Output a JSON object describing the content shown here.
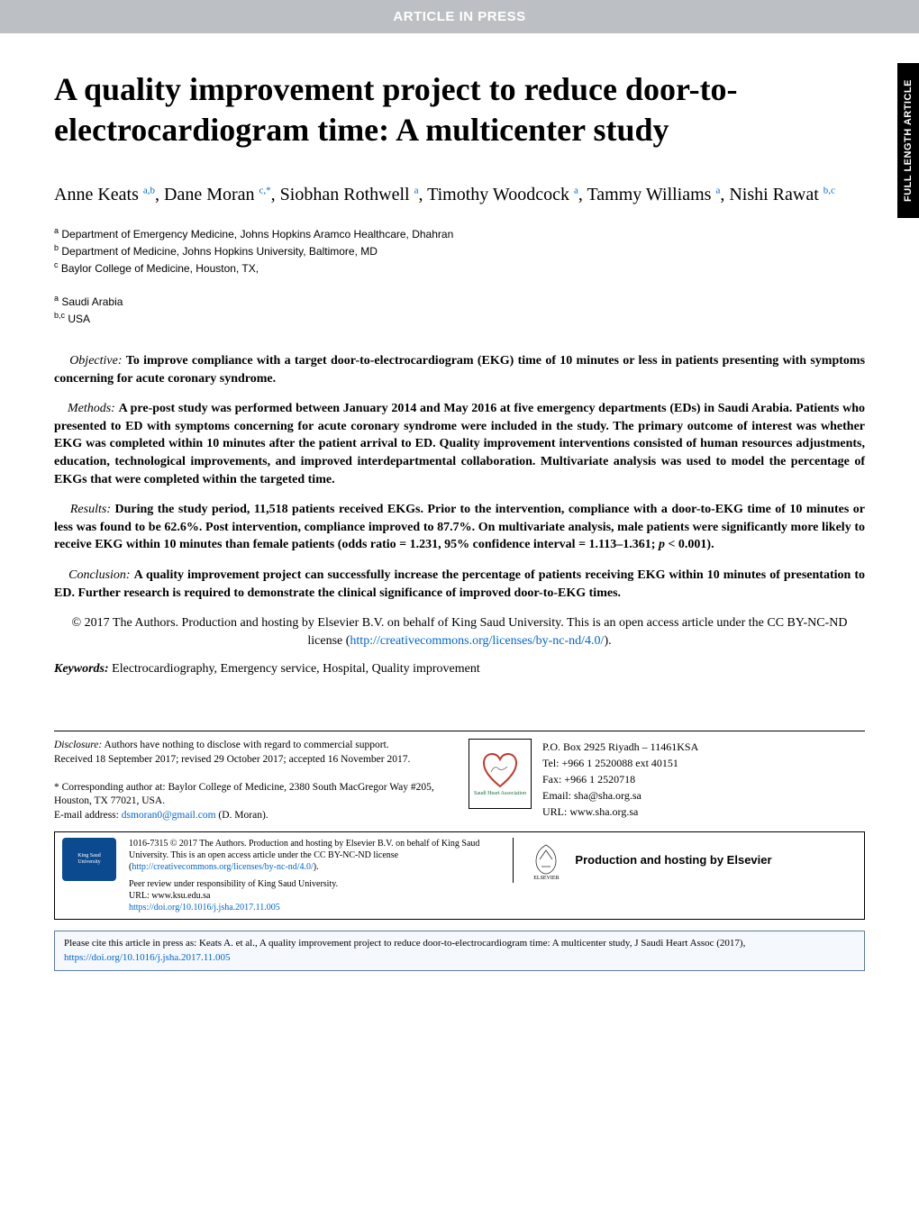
{
  "header_bar": "ARTICLE IN PRESS",
  "side_tab": "FULL LENGTH ARTICLE",
  "title": "A quality improvement project to reduce door-to-electrocardiogram time: A multicenter study",
  "authors_html": "Anne Keats <sup>a,b</sup>, Dane Moran <sup>c,*</sup>, Siobhan Rothwell <sup>a</sup>, Timothy Woodcock <sup>a</sup>, Tammy Williams <sup>a</sup>, Nishi Rawat <sup>b,c</sup>",
  "affiliations": {
    "a": "Department of Emergency Medicine, Johns Hopkins Aramco Healthcare, Dhahran",
    "b": "Department of Medicine, Johns Hopkins University, Baltimore, MD",
    "c": "Baylor College of Medicine, Houston, TX,"
  },
  "countries": {
    "a": "Saudi Arabia",
    "bc": "USA"
  },
  "abstract": {
    "objective": "To improve compliance with a target door-to-electrocardiogram (EKG) time of 10 minutes or less in patients presenting with symptoms concerning for acute coronary syndrome.",
    "methods": "A pre-post study was performed between January 2014 and May 2016 at five emergency departments (EDs) in Saudi Arabia. Patients who presented to ED with symptoms concerning for acute coronary syndrome were included in the study. The primary outcome of interest was whether EKG was completed within 10 minutes after the patient arrival to ED. Quality improvement interventions consisted of human resources adjustments, education, technological improvements, and improved interdepartmental collaboration. Multivariate analysis was used to model the percentage of EKGs that were completed within the targeted time.",
    "results": "During the study period, 11,518 patients received EKGs. Prior to the intervention, compliance with a door-to-EKG time of 10 minutes or less was found to be 62.6%. Post intervention, compliance improved to 87.7%. On multivariate analysis, male patients were significantly more likely to receive EKG within 10 minutes than female patients (odds ratio = 1.231, 95% confidence interval = 1.113–1.361; p < 0.001).",
    "conclusion": "A quality improvement project can successfully increase the percentage of patients receiving EKG within 10 minutes of presentation to ED. Further research is required to demonstrate the clinical significance of improved door-to-EKG times."
  },
  "copyright": {
    "text": "© 2017 The Authors. Production and hosting by Elsevier B.V. on behalf of King Saud University. This is an open access article under the CC BY-NC-ND license (",
    "link_text": "http://creativecommons.org/licenses/by-nc-nd/4.0/",
    "close": ")."
  },
  "keywords_label": "Keywords:",
  "keywords_text": "Electrocardiography, Emergency service, Hospital, Quality improvement",
  "disclosure": {
    "label": "Disclosure:",
    "text": "Authors have nothing to disclose with regard to commercial support.",
    "received": "Received 18 September 2017; revised 29 October 2017; accepted 16 November 2017."
  },
  "corresponding": {
    "text": "* Corresponding author at: Baylor College of Medicine, 2380 South MacGregor Way #205, Houston, TX 77021, USA.",
    "email_label": "E-mail address:",
    "email": "dsmoran0@gmail.com",
    "email_suffix": "(D. Moran)."
  },
  "contact": {
    "po": "P.O. Box 2925 Riyadh – 11461KSA",
    "tel": "Tel: +966 1 2520088 ext 40151",
    "fax": "Fax: +966 1 2520718",
    "email": "Email: sha@sha.org.sa",
    "url": "URL: www.sha.org.sa"
  },
  "footer_license": {
    "text": "1016-7315 © 2017 The Authors. Production and hosting by Elsevier B.V. on behalf of King Saud University. This is an open access article under the CC BY-NC-ND license (",
    "link": "http://creativecommons.org/licenses/by-nc-nd/4.0/",
    "close": ")."
  },
  "peer_review": "Peer review under responsibility of King Saud University.",
  "ksu_url": "URL: www.ksu.edu.sa",
  "doi": "https://doi.org/10.1016/j.jsha.2017.11.005",
  "elsevier_text": "Production and hosting by Elsevier",
  "elsevier_label": "ELSEVIER",
  "cite": {
    "text": "Please cite this article in press as: Keats A. et al., A quality improvement project to reduce door-to-electrocardiogram time: A multicenter study, J Saudi Heart Assoc (2017), ",
    "link": "https://doi.org/10.1016/j.jsha.2017.11.005"
  },
  "colors": {
    "header_bg": "#bcc0c4",
    "link": "#0066cc",
    "side_tab_bg": "#000000",
    "ksu_bg": "#0b4a8f",
    "heart": "#c0392b",
    "cite_border": "#5b7ca8",
    "cite_bg": "#f5f8fc"
  }
}
